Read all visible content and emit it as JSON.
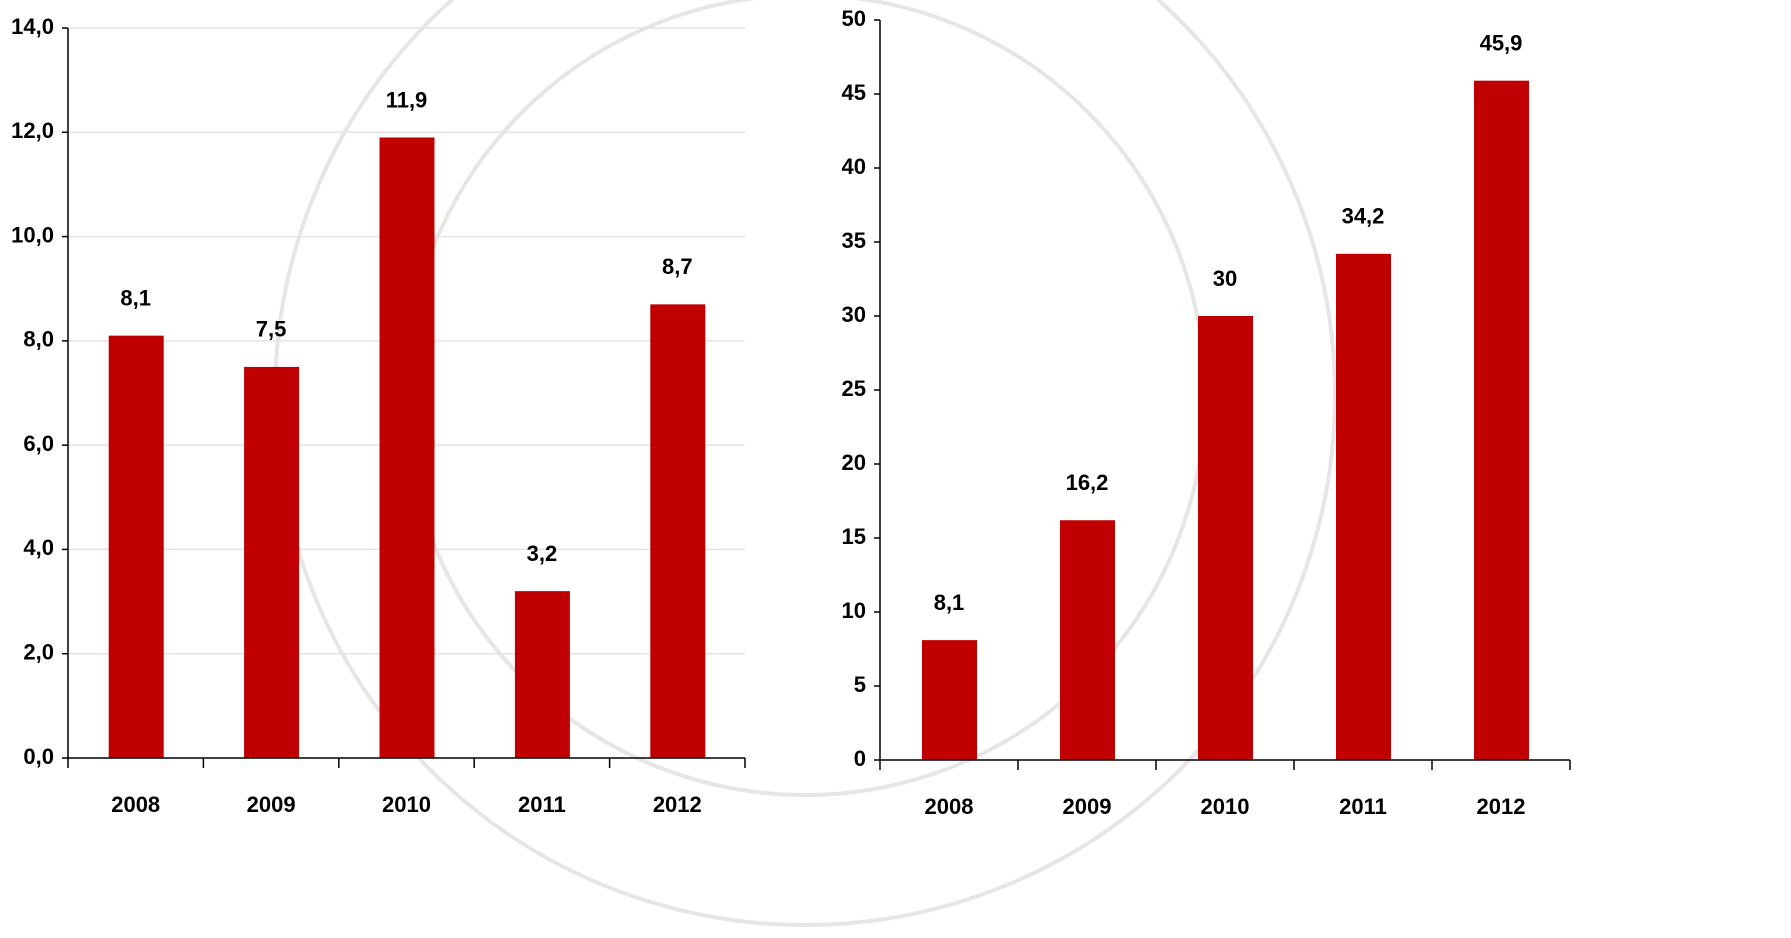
{
  "chart_data": [
    {
      "type": "bar",
      "categories": [
        "2008",
        "2009",
        "2010",
        "2011",
        "2012"
      ],
      "values": [
        8.1,
        7.5,
        11.9,
        3.2,
        8.7
      ],
      "value_labels": [
        "8,1",
        "7,5",
        "11,9",
        "3,2",
        "8,7"
      ],
      "color": "#c00000",
      "ylim": [
        0,
        14
      ],
      "yticks": [
        {
          "value": 0,
          "label": "0,0"
        },
        {
          "value": 2,
          "label": "2,0"
        },
        {
          "value": 4,
          "label": "4,0"
        },
        {
          "value": 6,
          "label": "6,0"
        },
        {
          "value": 8,
          "label": "8,0"
        },
        {
          "value": 10,
          "label": "10,0"
        },
        {
          "value": 12,
          "label": "12,0"
        },
        {
          "value": 14,
          "label": "14,0"
        }
      ],
      "grid": true
    },
    {
      "type": "bar",
      "categories": [
        "2008",
        "2009",
        "2010",
        "2011",
        "2012"
      ],
      "values": [
        8.1,
        16.2,
        30,
        34.2,
        45.9
      ],
      "value_labels": [
        "8,1",
        "16,2",
        "30",
        "34,2",
        "45,9"
      ],
      "color": "#c00000",
      "ylim": [
        0,
        50
      ],
      "yticks": [
        0,
        5,
        10,
        15,
        20,
        25,
        30,
        35,
        40,
        45,
        50
      ],
      "grid": false
    }
  ]
}
